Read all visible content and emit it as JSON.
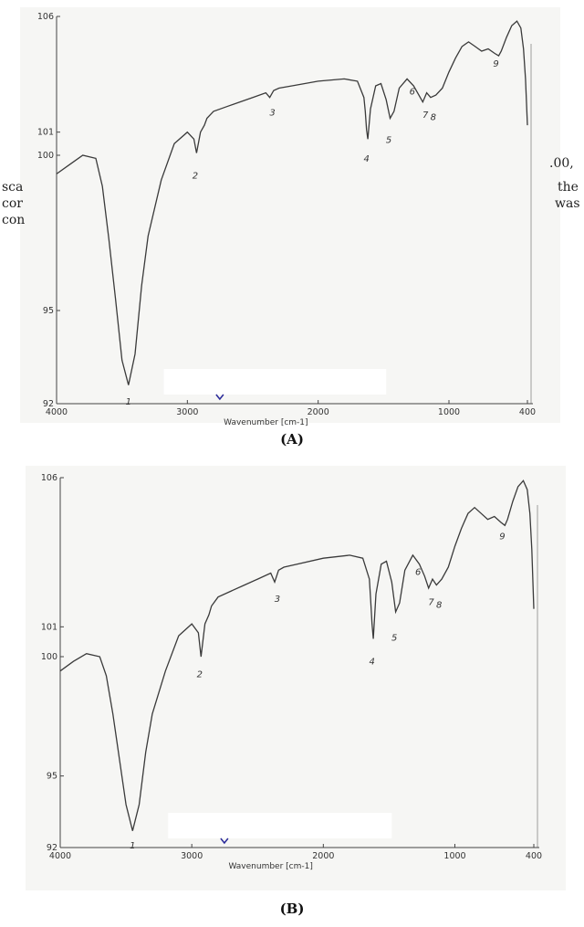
{
  "background_text": {
    "line1_right": ".00,",
    "line2_left": "sca",
    "line2_right": "the",
    "line3_left": "cor",
    "line3_right": "was",
    "line4_left": "con"
  },
  "captions": {
    "a": "(A)",
    "b": "(B)"
  },
  "chart_data": [
    {
      "type": "line",
      "panel": "A",
      "xlabel": "Wavenumber [cm-1]",
      "ylabel": "",
      "xlim": [
        4000,
        400
      ],
      "ylim": [
        92,
        106
      ],
      "x_ticks": [
        "4000",
        "3000",
        "2000",
        "1000",
        "400"
      ],
      "y_ticks": [
        "106",
        "101",
        "100",
        "95",
        "92"
      ],
      "x": [
        4000,
        3900,
        3800,
        3700,
        3650,
        3600,
        3550,
        3500,
        3450,
        3400,
        3350,
        3300,
        3200,
        3100,
        3000,
        2950,
        2930,
        2900,
        2870,
        2850,
        2800,
        2700,
        2600,
        2500,
        2400,
        2370,
        2340,
        2300,
        2200,
        2000,
        1800,
        1700,
        1650,
        1640,
        1630,
        1620,
        1600,
        1560,
        1520,
        1480,
        1450,
        1420,
        1380,
        1320,
        1270,
        1230,
        1200,
        1170,
        1140,
        1100,
        1050,
        1000,
        950,
        900,
        850,
        800,
        750,
        700,
        650,
        620,
        600,
        560,
        520,
        480,
        450,
        430,
        415,
        400
      ],
      "values": [
        99.4,
        99.7,
        100.0,
        99.9,
        99.0,
        97.3,
        95.4,
        93.4,
        92.6,
        93.6,
        95.8,
        97.4,
        99.2,
        100.5,
        101.0,
        100.7,
        100.1,
        101.0,
        101.3,
        101.6,
        101.9,
        102.1,
        102.3,
        102.5,
        102.7,
        102.5,
        102.8,
        102.9,
        103.0,
        103.2,
        103.3,
        103.2,
        102.5,
        101.9,
        101.1,
        100.7,
        102.0,
        103.0,
        103.1,
        102.4,
        101.6,
        101.9,
        102.9,
        103.3,
        103.0,
        102.6,
        102.3,
        102.7,
        102.5,
        102.6,
        102.9,
        103.6,
        104.2,
        104.7,
        104.9,
        104.7,
        104.5,
        104.6,
        104.4,
        104.3,
        104.5,
        105.1,
        105.6,
        105.8,
        105.5,
        104.6,
        103.3,
        101.3
      ],
      "peak_labels": [
        {
          "label": "1",
          "x": 3450,
          "y": 92.1
        },
        {
          "label": "2",
          "x": 2940,
          "y": 99.6
        },
        {
          "label": "3",
          "x": 2350,
          "y": 102.2
        },
        {
          "label": "4",
          "x": 1630,
          "y": 100.2
        },
        {
          "label": "5",
          "x": 1460,
          "y": 101.0
        },
        {
          "label": "6",
          "x": 1280,
          "y": 103.1
        },
        {
          "label": "7",
          "x": 1180,
          "y": 102.1
        },
        {
          "label": "8",
          "x": 1120,
          "y": 102.0
        },
        {
          "label": "9",
          "x": 640,
          "y": 104.3
        }
      ]
    },
    {
      "type": "line",
      "panel": "B",
      "xlabel": "Wavenumber [cm-1]",
      "ylabel": "",
      "xlim": [
        4000,
        400
      ],
      "ylim": [
        92,
        106
      ],
      "x_ticks": [
        "4000",
        "3000",
        "2000",
        "1000",
        "400"
      ],
      "y_ticks": [
        "106",
        "101",
        "100",
        "95",
        "92"
      ],
      "x": [
        4000,
        3900,
        3800,
        3700,
        3650,
        3600,
        3550,
        3500,
        3450,
        3400,
        3350,
        3300,
        3200,
        3100,
        3000,
        2950,
        2930,
        2900,
        2870,
        2850,
        2800,
        2700,
        2600,
        2500,
        2400,
        2370,
        2340,
        2300,
        2200,
        2000,
        1800,
        1700,
        1650,
        1640,
        1630,
        1620,
        1600,
        1560,
        1520,
        1480,
        1450,
        1420,
        1380,
        1320,
        1270,
        1230,
        1200,
        1170,
        1140,
        1100,
        1050,
        1000,
        950,
        900,
        850,
        800,
        750,
        700,
        650,
        620,
        600,
        560,
        520,
        480,
        450,
        430,
        415,
        400
      ],
      "values": [
        99.4,
        99.8,
        100.1,
        100.0,
        99.2,
        97.6,
        95.7,
        93.8,
        92.7,
        93.8,
        96.0,
        97.6,
        99.4,
        100.7,
        101.1,
        100.8,
        100.0,
        101.1,
        101.4,
        101.7,
        102.0,
        102.2,
        102.4,
        102.6,
        102.8,
        102.5,
        102.9,
        103.0,
        103.1,
        103.3,
        103.4,
        103.3,
        102.6,
        101.9,
        101.1,
        100.6,
        102.1,
        103.1,
        103.2,
        102.5,
        101.5,
        101.8,
        102.9,
        103.4,
        103.1,
        102.7,
        102.3,
        102.6,
        102.4,
        102.6,
        103.0,
        103.7,
        104.3,
        104.8,
        105.0,
        104.8,
        104.6,
        104.7,
        104.5,
        104.4,
        104.6,
        105.2,
        105.7,
        105.9,
        105.6,
        104.8,
        103.6,
        101.6
      ],
      "peak_labels": [
        {
          "label": "1",
          "x": 3450,
          "y": 92.1
        },
        {
          "label": "2",
          "x": 2940,
          "y": 99.6
        },
        {
          "label": "3",
          "x": 2350,
          "y": 102.2
        },
        {
          "label": "4",
          "x": 1630,
          "y": 100.1
        },
        {
          "label": "5",
          "x": 1460,
          "y": 100.9
        },
        {
          "label": "6",
          "x": 1280,
          "y": 103.1
        },
        {
          "label": "7",
          "x": 1180,
          "y": 102.1
        },
        {
          "label": "8",
          "x": 1120,
          "y": 102.0
        },
        {
          "label": "9",
          "x": 640,
          "y": 104.3
        }
      ]
    }
  ]
}
